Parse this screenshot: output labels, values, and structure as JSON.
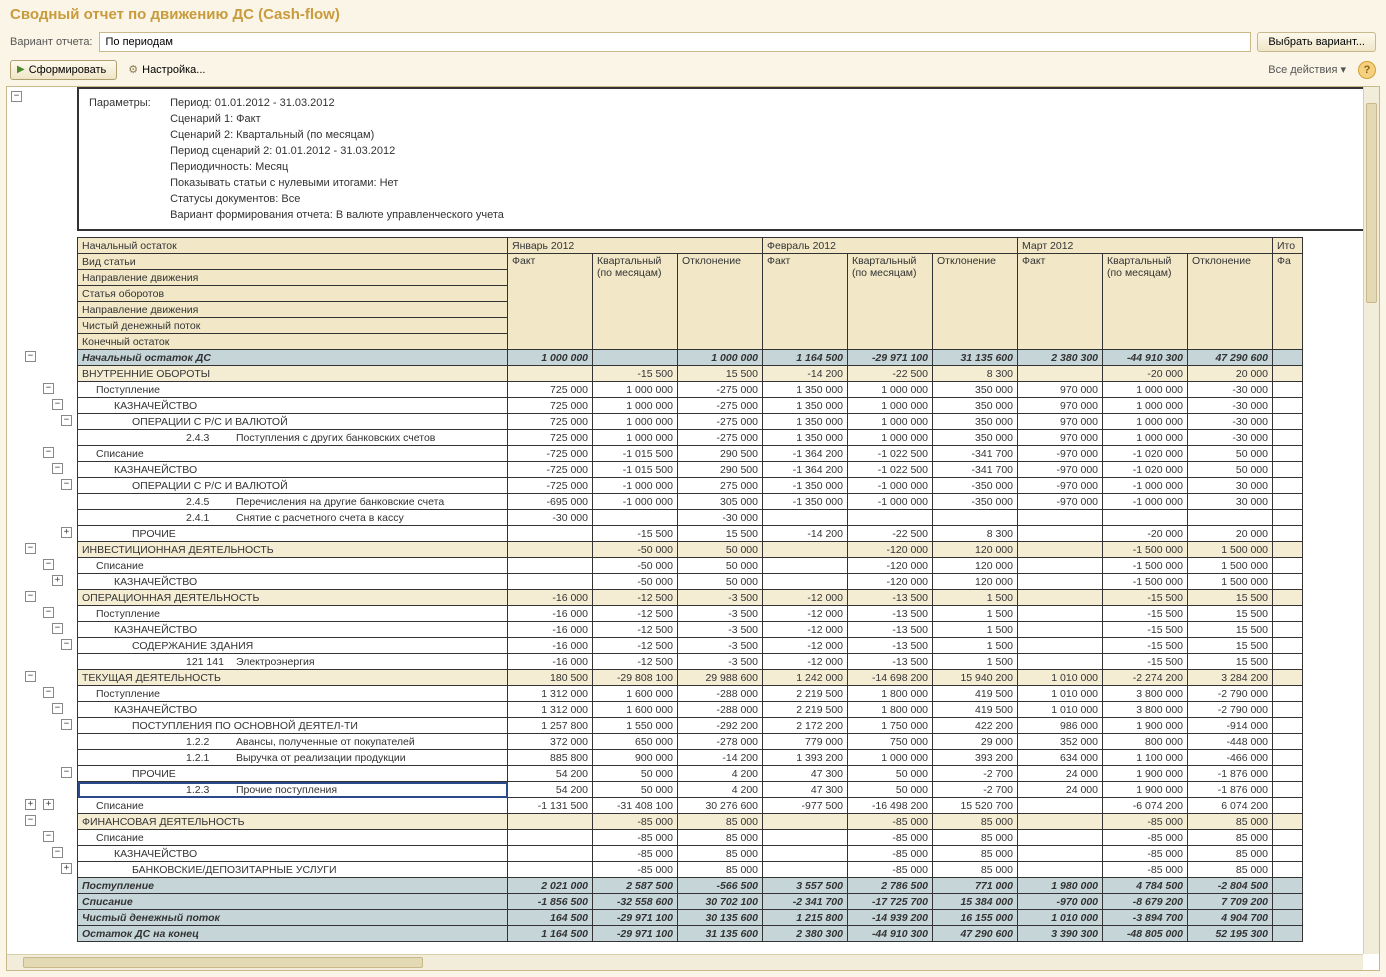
{
  "title": "Сводный отчет по движению ДС (Cash-flow)",
  "variant": {
    "label": "Вариант отчета:",
    "value": "По периодам",
    "choose_btn": "Выбрать вариант..."
  },
  "toolbar": {
    "generate": "Сформировать",
    "settings": "Настройка...",
    "all_actions": "Все действия ▾",
    "help": "?"
  },
  "params": {
    "label": "Параметры:",
    "lines": [
      "Период: 01.01.2012 - 31.03.2012",
      "Сценарий 1: Факт",
      "Сценарий 2: Квартальный (по месяцам)",
      "Период сценарий 2: 01.01.2012 - 31.03.2012",
      "Периодичность: Месяц",
      "Показывать статьи с нулевыми итогами: Нет",
      "Статусы документов: Все",
      "Вариант формирования отчета: В валюте управленческого учета"
    ]
  },
  "header": {
    "first_col_rows": [
      "Начальный остаток",
      "Вид статьи",
      "Направление движения",
      "Статья оборотов",
      "Направление движения",
      "Чистый денежный поток",
      "Конечный остаток"
    ],
    "periods": [
      "Январь 2012",
      "Февраль 2012",
      "Март 2012"
    ],
    "subcols": [
      "Факт",
      "Квартальный (по месяцам)",
      "Отклонение"
    ],
    "tail": "Ито",
    "tail2": "Фа"
  },
  "rows": [
    {
      "lvl": 0,
      "style": "greyblue",
      "label": "Начальный остаток ДС",
      "v": [
        "1 000 000",
        "",
        "1 000 000",
        "1 164 500",
        "-29 971 100",
        "31 135 600",
        "2 380 300",
        "-44 910 300",
        "47 290 600"
      ],
      "tog": {
        "x": 18,
        "s": "-"
      }
    },
    {
      "lvl": 0,
      "style": "beige",
      "label": "ВНУТРЕННИЕ ОБОРОТЫ",
      "v": [
        "",
        "-15 500",
        "15 500",
        "-14 200",
        "-22 500",
        "8 300",
        "",
        "-20 000",
        "20 000"
      ]
    },
    {
      "lvl": 1,
      "label": "Поступление",
      "v": [
        "725 000",
        "1 000 000",
        "-275 000",
        "1 350 000",
        "1 000 000",
        "350 000",
        "970 000",
        "1 000 000",
        "-30 000"
      ],
      "tog": {
        "x": 36,
        "s": "-"
      }
    },
    {
      "lvl": 2,
      "label": "КАЗНАЧЕЙСТВО",
      "v": [
        "725 000",
        "1 000 000",
        "-275 000",
        "1 350 000",
        "1 000 000",
        "350 000",
        "970 000",
        "1 000 000",
        "-30 000"
      ],
      "tog": {
        "x": 45,
        "s": "-"
      }
    },
    {
      "lvl": 3,
      "label": "ОПЕРАЦИИ С Р/С И ВАЛЮТОЙ",
      "v": [
        "725 000",
        "1 000 000",
        "-275 000",
        "1 350 000",
        "1 000 000",
        "350 000",
        "970 000",
        "1 000 000",
        "-30 000"
      ],
      "tog": {
        "x": 54,
        "s": "-"
      }
    },
    {
      "lvl": 5,
      "code": "2.4.3",
      "label": "Поступления с других банковских счетов",
      "v": [
        "725 000",
        "1 000 000",
        "-275 000",
        "1 350 000",
        "1 000 000",
        "350 000",
        "970 000",
        "1 000 000",
        "-30 000"
      ]
    },
    {
      "lvl": 1,
      "label": "Списание",
      "v": [
        "-725 000",
        "-1 015 500",
        "290 500",
        "-1 364 200",
        "-1 022 500",
        "-341 700",
        "-970 000",
        "-1 020 000",
        "50 000"
      ],
      "tog": {
        "x": 36,
        "s": "-"
      }
    },
    {
      "lvl": 2,
      "label": "КАЗНАЧЕЙСТВО",
      "v": [
        "-725 000",
        "-1 015 500",
        "290 500",
        "-1 364 200",
        "-1 022 500",
        "-341 700",
        "-970 000",
        "-1 020 000",
        "50 000"
      ],
      "tog": {
        "x": 45,
        "s": "-"
      }
    },
    {
      "lvl": 3,
      "label": "ОПЕРАЦИИ С Р/С И ВАЛЮТОЙ",
      "v": [
        "-725 000",
        "-1 000 000",
        "275 000",
        "-1 350 000",
        "-1 000 000",
        "-350 000",
        "-970 000",
        "-1 000 000",
        "30 000"
      ],
      "tog": {
        "x": 54,
        "s": "-"
      }
    },
    {
      "lvl": 5,
      "code": "2.4.5",
      "label": "Перечисления на другие банковские счета",
      "v": [
        "-695 000",
        "-1 000 000",
        "305 000",
        "-1 350 000",
        "-1 000 000",
        "-350 000",
        "-970 000",
        "-1 000 000",
        "30 000"
      ]
    },
    {
      "lvl": 5,
      "code": "2.4.1",
      "label": "Снятие с расчетного счета в кассу",
      "v": [
        "-30 000",
        "",
        "-30 000",
        "",
        "",
        "",
        "",
        "",
        ""
      ]
    },
    {
      "lvl": 3,
      "label": "ПРОЧИЕ",
      "v": [
        "",
        "-15 500",
        "15 500",
        "-14 200",
        "-22 500",
        "8 300",
        "",
        "-20 000",
        "20 000"
      ],
      "tog": {
        "x": 54,
        "s": "+"
      }
    },
    {
      "lvl": 0,
      "style": "beige",
      "label": "ИНВЕСТИЦИОННАЯ ДЕЯТЕЛЬНОСТЬ",
      "v": [
        "",
        "-50 000",
        "50 000",
        "",
        "-120 000",
        "120 000",
        "",
        "-1 500 000",
        "1 500 000"
      ],
      "tog": {
        "x": 18,
        "s": "-"
      }
    },
    {
      "lvl": 1,
      "label": "Списание",
      "v": [
        "",
        "-50 000",
        "50 000",
        "",
        "-120 000",
        "120 000",
        "",
        "-1 500 000",
        "1 500 000"
      ],
      "tog": {
        "x": 36,
        "s": "-"
      }
    },
    {
      "lvl": 2,
      "label": "КАЗНАЧЕЙСТВО",
      "v": [
        "",
        "-50 000",
        "50 000",
        "",
        "-120 000",
        "120 000",
        "",
        "-1 500 000",
        "1 500 000"
      ],
      "tog": {
        "x": 45,
        "s": "+"
      }
    },
    {
      "lvl": 0,
      "style": "beige",
      "label": "ОПЕРАЦИОННАЯ ДЕЯТЕЛЬНОСТЬ",
      "v": [
        "-16 000",
        "-12 500",
        "-3 500",
        "-12 000",
        "-13 500",
        "1 500",
        "",
        "-15 500",
        "15 500"
      ],
      "tog": {
        "x": 18,
        "s": "-"
      }
    },
    {
      "lvl": 1,
      "label": "Поступление",
      "v": [
        "-16 000",
        "-12 500",
        "-3 500",
        "-12 000",
        "-13 500",
        "1 500",
        "",
        "-15 500",
        "15 500"
      ],
      "tog": {
        "x": 36,
        "s": "-"
      }
    },
    {
      "lvl": 2,
      "label": "КАЗНАЧЕЙСТВО",
      "v": [
        "-16 000",
        "-12 500",
        "-3 500",
        "-12 000",
        "-13 500",
        "1 500",
        "",
        "-15 500",
        "15 500"
      ],
      "tog": {
        "x": 45,
        "s": "-"
      }
    },
    {
      "lvl": 3,
      "label": "СОДЕРЖАНИЕ ЗДАНИЯ",
      "v": [
        "-16 000",
        "-12 500",
        "-3 500",
        "-12 000",
        "-13 500",
        "1 500",
        "",
        "-15 500",
        "15 500"
      ],
      "tog": {
        "x": 54,
        "s": "-"
      }
    },
    {
      "lvl": 5,
      "code": "121 141",
      "label": "Электроэнергия",
      "v": [
        "-16 000",
        "-12 500",
        "-3 500",
        "-12 000",
        "-13 500",
        "1 500",
        "",
        "-15 500",
        "15 500"
      ]
    },
    {
      "lvl": 0,
      "style": "beige",
      "label": "ТЕКУЩАЯ ДЕЯТЕЛЬНОСТЬ",
      "v": [
        "180 500",
        "-29 808 100",
        "29 988 600",
        "1 242 000",
        "-14 698 200",
        "15 940 200",
        "1 010 000",
        "-2 274 200",
        "3 284 200"
      ],
      "tog": {
        "x": 18,
        "s": "-"
      }
    },
    {
      "lvl": 1,
      "label": "Поступление",
      "v": [
        "1 312 000",
        "1 600 000",
        "-288 000",
        "2 219 500",
        "1 800 000",
        "419 500",
        "1 010 000",
        "3 800 000",
        "-2 790 000"
      ],
      "tog": {
        "x": 36,
        "s": "-"
      }
    },
    {
      "lvl": 2,
      "label": "КАЗНАЧЕЙСТВО",
      "v": [
        "1 312 000",
        "1 600 000",
        "-288 000",
        "2 219 500",
        "1 800 000",
        "419 500",
        "1 010 000",
        "3 800 000",
        "-2 790 000"
      ],
      "tog": {
        "x": 45,
        "s": "-"
      }
    },
    {
      "lvl": 3,
      "label": "ПОСТУПЛЕНИЯ ПО ОСНОВНОЙ ДЕЯТЕЛ-ТИ",
      "v": [
        "1 257 800",
        "1 550 000",
        "-292 200",
        "2 172 200",
        "1 750 000",
        "422 200",
        "986 000",
        "1 900 000",
        "-914 000"
      ],
      "tog": {
        "x": 54,
        "s": "-"
      }
    },
    {
      "lvl": 5,
      "code": "1.2.2",
      "label": "Авансы, полученные от покупателей",
      "v": [
        "372 000",
        "650 000",
        "-278 000",
        "779 000",
        "750 000",
        "29 000",
        "352 000",
        "800 000",
        "-448 000"
      ]
    },
    {
      "lvl": 5,
      "code": "1.2.1",
      "label": "Выручка от реализации продукции",
      "v": [
        "885 800",
        "900 000",
        "-14 200",
        "1 393 200",
        "1 000 000",
        "393 200",
        "634 000",
        "1 100 000",
        "-466 000"
      ]
    },
    {
      "lvl": 3,
      "label": "ПРОЧИЕ",
      "v": [
        "54 200",
        "50 000",
        "4 200",
        "47 300",
        "50 000",
        "-2 700",
        "24 000",
        "1 900 000",
        "-1 876 000"
      ],
      "tog": {
        "x": 54,
        "s": "-"
      }
    },
    {
      "lvl": 5,
      "code": "1.2.3",
      "label": "Прочие поступления",
      "sel": true,
      "v": [
        "54 200",
        "50 000",
        "4 200",
        "47 300",
        "50 000",
        "-2 700",
        "24 000",
        "1 900 000",
        "-1 876 000"
      ]
    },
    {
      "lvl": 1,
      "label": "Списание",
      "v": [
        "-1 131 500",
        "-31 408 100",
        "30 276 600",
        "-977 500",
        "-16 498 200",
        "15 520 700",
        "",
        "-6 074 200",
        "6 074 200"
      ],
      "tog": {
        "x": 36,
        "s": "+"
      },
      "tog2": {
        "x": 18,
        "s": "+"
      }
    },
    {
      "lvl": 0,
      "style": "beige",
      "label": "ФИНАНСОВАЯ ДЕЯТЕЛЬНОСТЬ",
      "v": [
        "",
        "-85 000",
        "85 000",
        "",
        "-85 000",
        "85 000",
        "",
        "-85 000",
        "85 000"
      ],
      "tog": {
        "x": 18,
        "s": "-"
      }
    },
    {
      "lvl": 1,
      "label": "Списание",
      "v": [
        "",
        "-85 000",
        "85 000",
        "",
        "-85 000",
        "85 000",
        "",
        "-85 000",
        "85 000"
      ],
      "tog": {
        "x": 36,
        "s": "-"
      }
    },
    {
      "lvl": 2,
      "label": "КАЗНАЧЕЙСТВО",
      "v": [
        "",
        "-85 000",
        "85 000",
        "",
        "-85 000",
        "85 000",
        "",
        "-85 000",
        "85 000"
      ],
      "tog": {
        "x": 45,
        "s": "-"
      }
    },
    {
      "lvl": 3,
      "label": "БАНКОВСКИЕ/ДЕПОЗИТАРНЫЕ УСЛУГИ",
      "v": [
        "",
        "-85 000",
        "85 000",
        "",
        "-85 000",
        "85 000",
        "",
        "-85 000",
        "85 000"
      ],
      "tog": {
        "x": 54,
        "s": "+"
      }
    },
    {
      "lvl": 0,
      "style": "italic",
      "label": "Поступление",
      "v": [
        "2 021 000",
        "2 587 500",
        "-566 500",
        "3 557 500",
        "2 786 500",
        "771 000",
        "1 980 000",
        "4 784 500",
        "-2 804 500"
      ]
    },
    {
      "lvl": 0,
      "style": "italic",
      "label": "Списание",
      "v": [
        "-1 856 500",
        "-32 558 600",
        "30 702 100",
        "-2 341 700",
        "-17 725 700",
        "15 384 000",
        "-970 000",
        "-8 679 200",
        "7 709 200"
      ]
    },
    {
      "lvl": 0,
      "style": "italic",
      "label": "Чистый денежный поток",
      "v": [
        "164 500",
        "-29 971 100",
        "30 135 600",
        "1 215 800",
        "-14 939 200",
        "16 155 000",
        "1 010 000",
        "-3 894 700",
        "4 904 700"
      ]
    },
    {
      "lvl": 0,
      "style": "italic",
      "label": "Остаток ДС на конец",
      "v": [
        "1 164 500",
        "-29 971 100",
        "31 135 600",
        "2 380 300",
        "-44 910 300",
        "47 290 600",
        "3 390 300",
        "-48 805 000",
        "52 195 300"
      ]
    }
  ],
  "col_widths": {
    "label": 430,
    "num": 85
  },
  "colors": {
    "bg": "#faf5e6",
    "header_cell": "#f2e8c8",
    "row_beige": "#f5edd3",
    "row_greyblue": "#c5d5d8",
    "border": "#333333",
    "title": "#c89b3c"
  }
}
